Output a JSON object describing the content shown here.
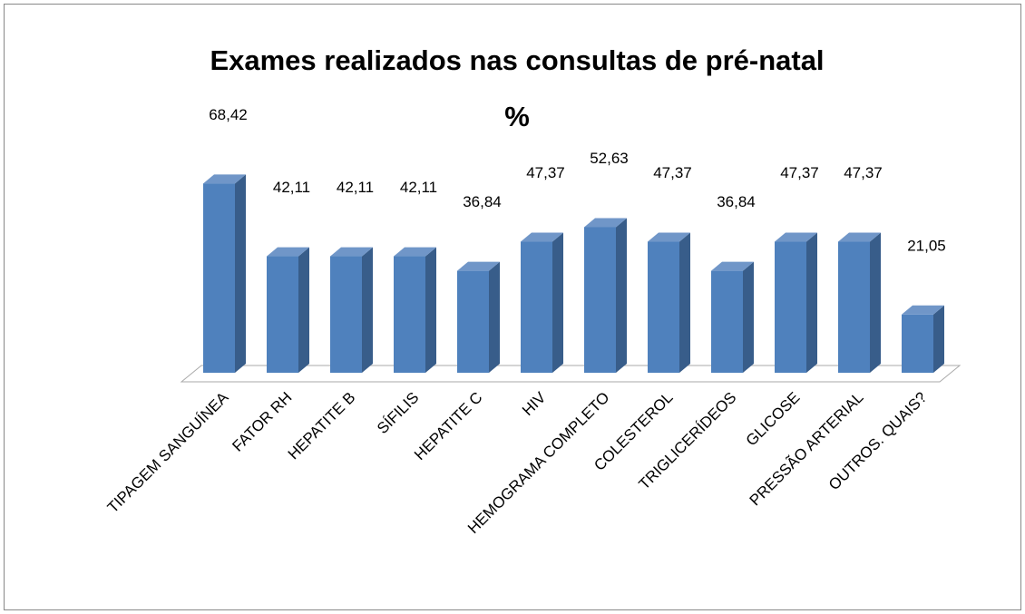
{
  "chart_data": {
    "type": "bar3d",
    "title": "Exames realizados nas consultas  de pré-natal %",
    "categories": [
      "TIPAGEM SANGUÍNEA",
      "FATOR RH",
      "HEPATITE B",
      "SÍFILIS",
      "HEPATITE C",
      "HIV",
      "HEMOGRAMA COMPLETO",
      "COLESTEROL",
      "TRIGLICERÍDEOS",
      "GLICOSE",
      "PRESSÃO ARTERIAL",
      "OUTROS. QUAIS?"
    ],
    "values": [
      68.42,
      42.11,
      42.11,
      42.11,
      36.84,
      47.37,
      52.63,
      47.37,
      36.84,
      47.37,
      47.37,
      21.05
    ],
    "value_labels": [
      "68,42",
      "42,11",
      "42,11",
      "42,11",
      "36,84",
      "47,37",
      "52,63",
      "47,37",
      "36,84",
      "47,37",
      "47,37",
      "21,05"
    ],
    "color": "#4f81bd"
  }
}
